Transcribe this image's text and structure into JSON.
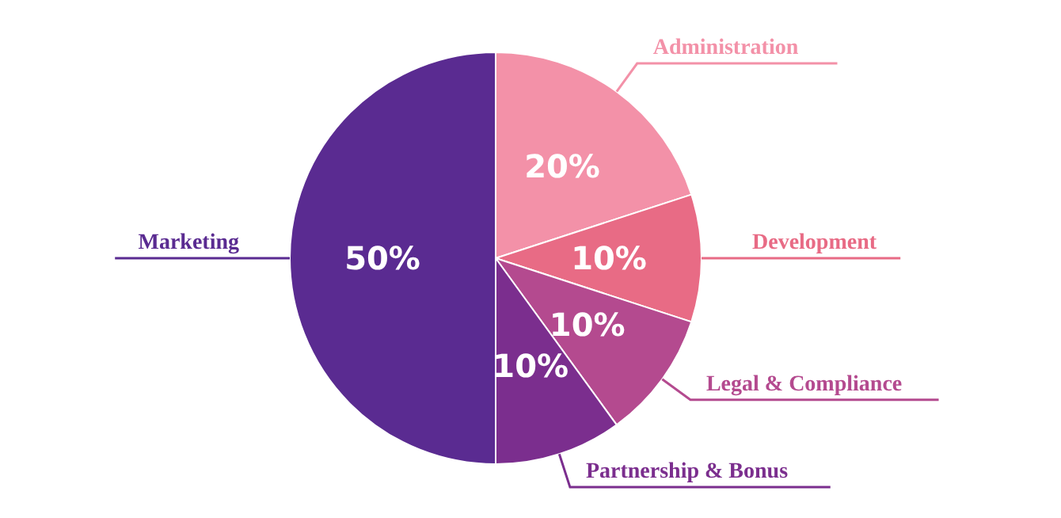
{
  "chart_data": {
    "type": "pie",
    "categories": [
      "Administration",
      "Development",
      "Legal & Compliance",
      "Partnership & Bonus",
      "Marketing"
    ],
    "values": [
      20,
      10,
      10,
      10,
      50
    ],
    "value_labels": [
      "20%",
      "10%",
      "10%",
      "10%",
      "50%"
    ],
    "colors": [
      "#f391a8",
      "#e86b85",
      "#b44a8f",
      "#7b2e8e",
      "#5a2b91"
    ]
  }
}
